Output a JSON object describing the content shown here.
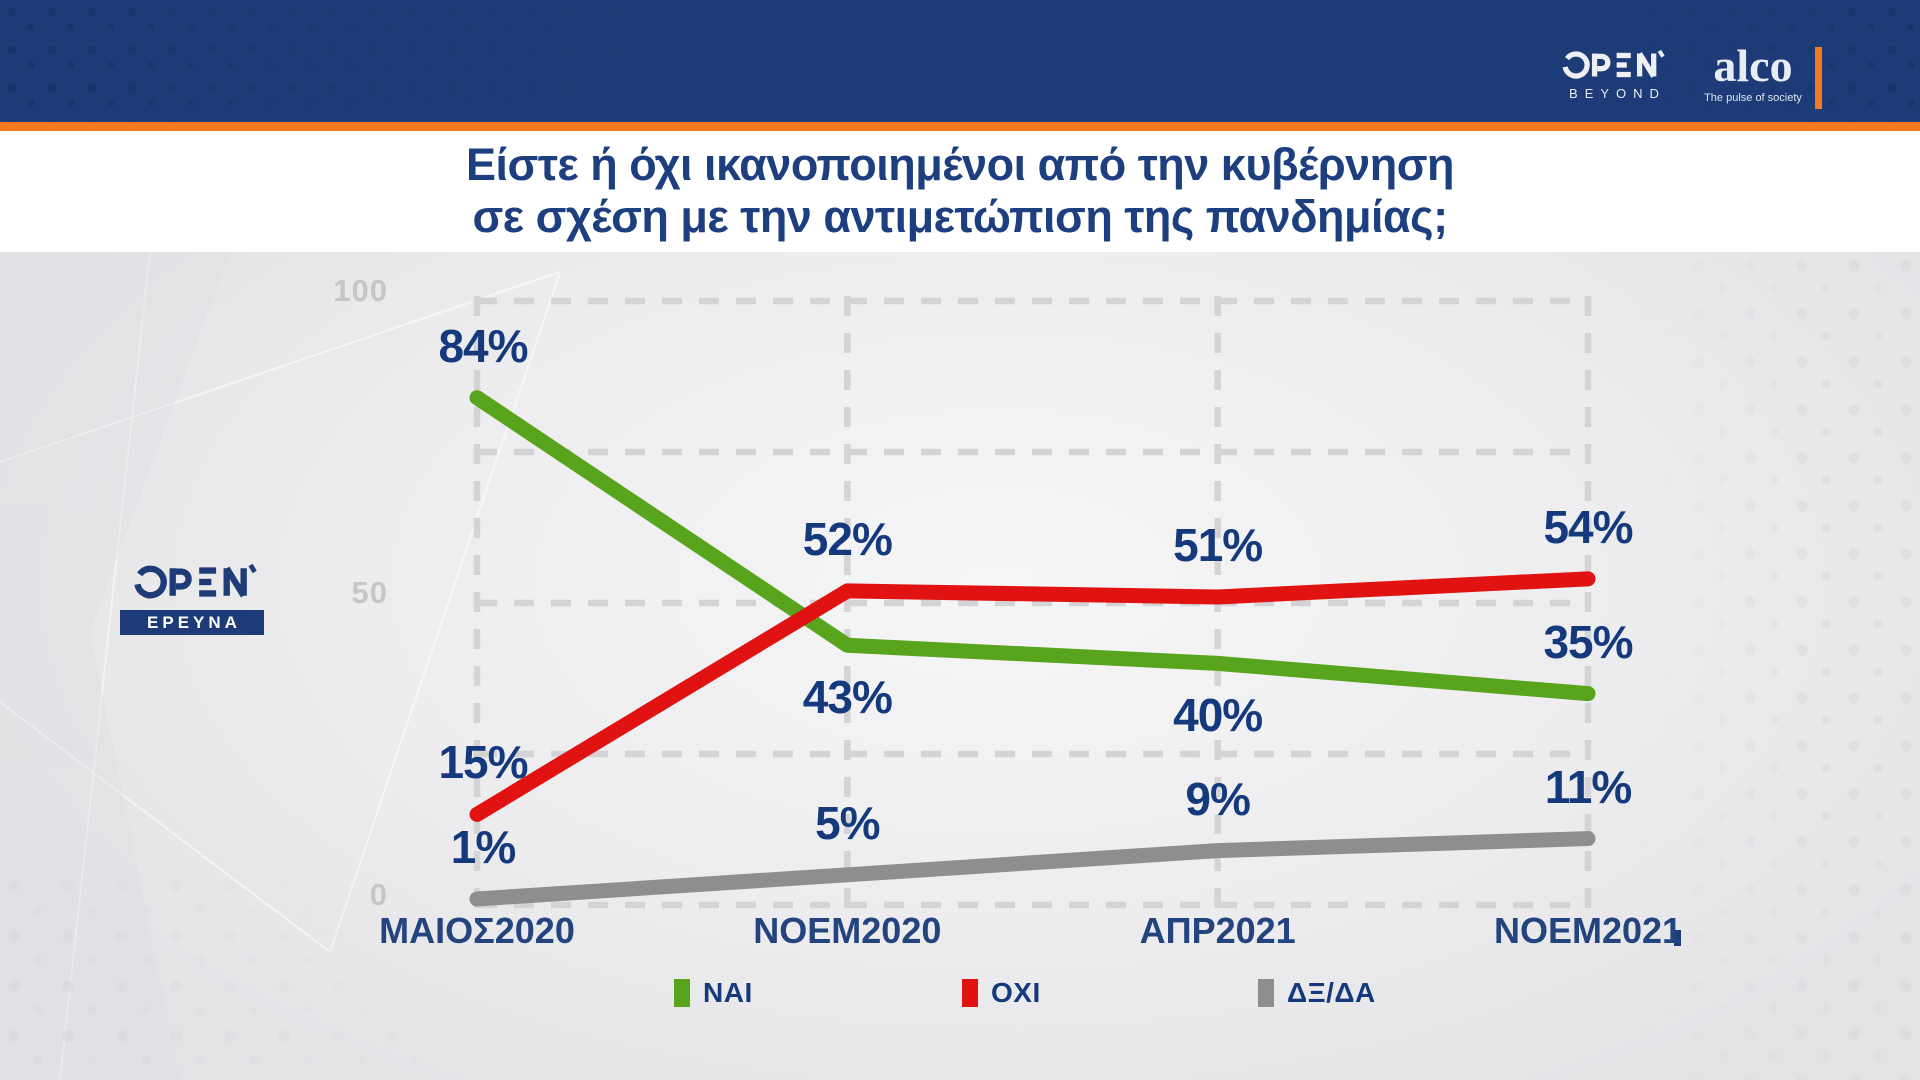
{
  "header": {
    "open_logo": {
      "name": "OPEN",
      "subtext": "BEYOND"
    },
    "alco_logo": {
      "text": "alco",
      "tagline": "The pulse of society"
    },
    "colors": {
      "bar": "#1d3c77",
      "accent": "#f5791f"
    }
  },
  "title": {
    "line1": "Είστε ή όχι ικανοποιημένοι από την κυβέρνηση",
    "line2": "σε σχέση με την αντιμετώπιση της πανδημίας;"
  },
  "side_logo": {
    "name": "OPEN",
    "banner": "ΕΡΕΥΝΑ"
  },
  "chart_data": {
    "type": "line",
    "title": "Είστε ή όχι ικανοποιημένοι από την κυβέρνηση σε σχέση με την αντιμετώπιση της πανδημίας;",
    "categories": [
      "ΜΑΙΟΣ2020",
      "ΝΟΕΜ2020",
      "ΑΠΡ2021",
      "ΝΟΕΜ2021"
    ],
    "series": [
      {
        "name": "ΝΑΙ",
        "color": "#58a41d",
        "values": [
          84,
          43,
          40,
          35
        ],
        "label_side": [
          "above",
          "below",
          "below",
          "above"
        ]
      },
      {
        "name": "ΟΧΙ",
        "color": "#e01212",
        "values": [
          15,
          52,
          51,
          54
        ],
        "label_side": [
          "above",
          "above",
          "above",
          "above"
        ]
      },
      {
        "name": "ΔΞ/ΔΑ",
        "color": "#8e8e8e",
        "values": [
          1,
          5,
          9,
          11
        ],
        "label_side": [
          "above",
          "above",
          "above",
          "above"
        ]
      }
    ],
    "ylim": [
      0,
      100
    ],
    "yticks": [
      100,
      50,
      0
    ],
    "grid": {
      "horizontal_values": [
        0,
        25,
        50,
        75,
        100
      ],
      "vertical": "one-per-category",
      "style": "dashed"
    },
    "legend_position": "bottom",
    "label_suffix": "%",
    "label_color": "#15397d",
    "category_color": "#24447f",
    "axis_tick_color": "#c6c6c9",
    "grid_color": "#d4d4d7"
  }
}
